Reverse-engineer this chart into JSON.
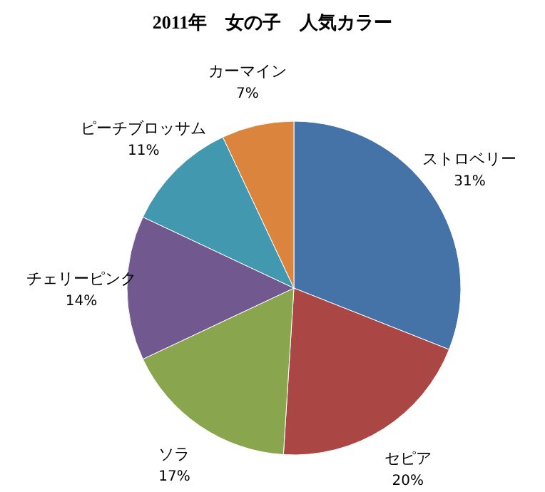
{
  "chart_data": {
    "type": "pie",
    "title": "2011年　女の子　人気カラー",
    "categories": [
      "ストロベリー",
      "セピア",
      "ソラ",
      "チェリーピンク",
      "ピーチブロッサム",
      "カーマイン"
    ],
    "values": [
      31,
      20,
      17,
      14,
      11,
      7
    ],
    "colors": [
      "#4572a7",
      "#aa4643",
      "#89a54e",
      "#71588f",
      "#4198af",
      "#db843d"
    ],
    "value_labels": [
      "31%",
      "20%",
      "17%",
      "14%",
      "11%",
      "7%"
    ]
  }
}
